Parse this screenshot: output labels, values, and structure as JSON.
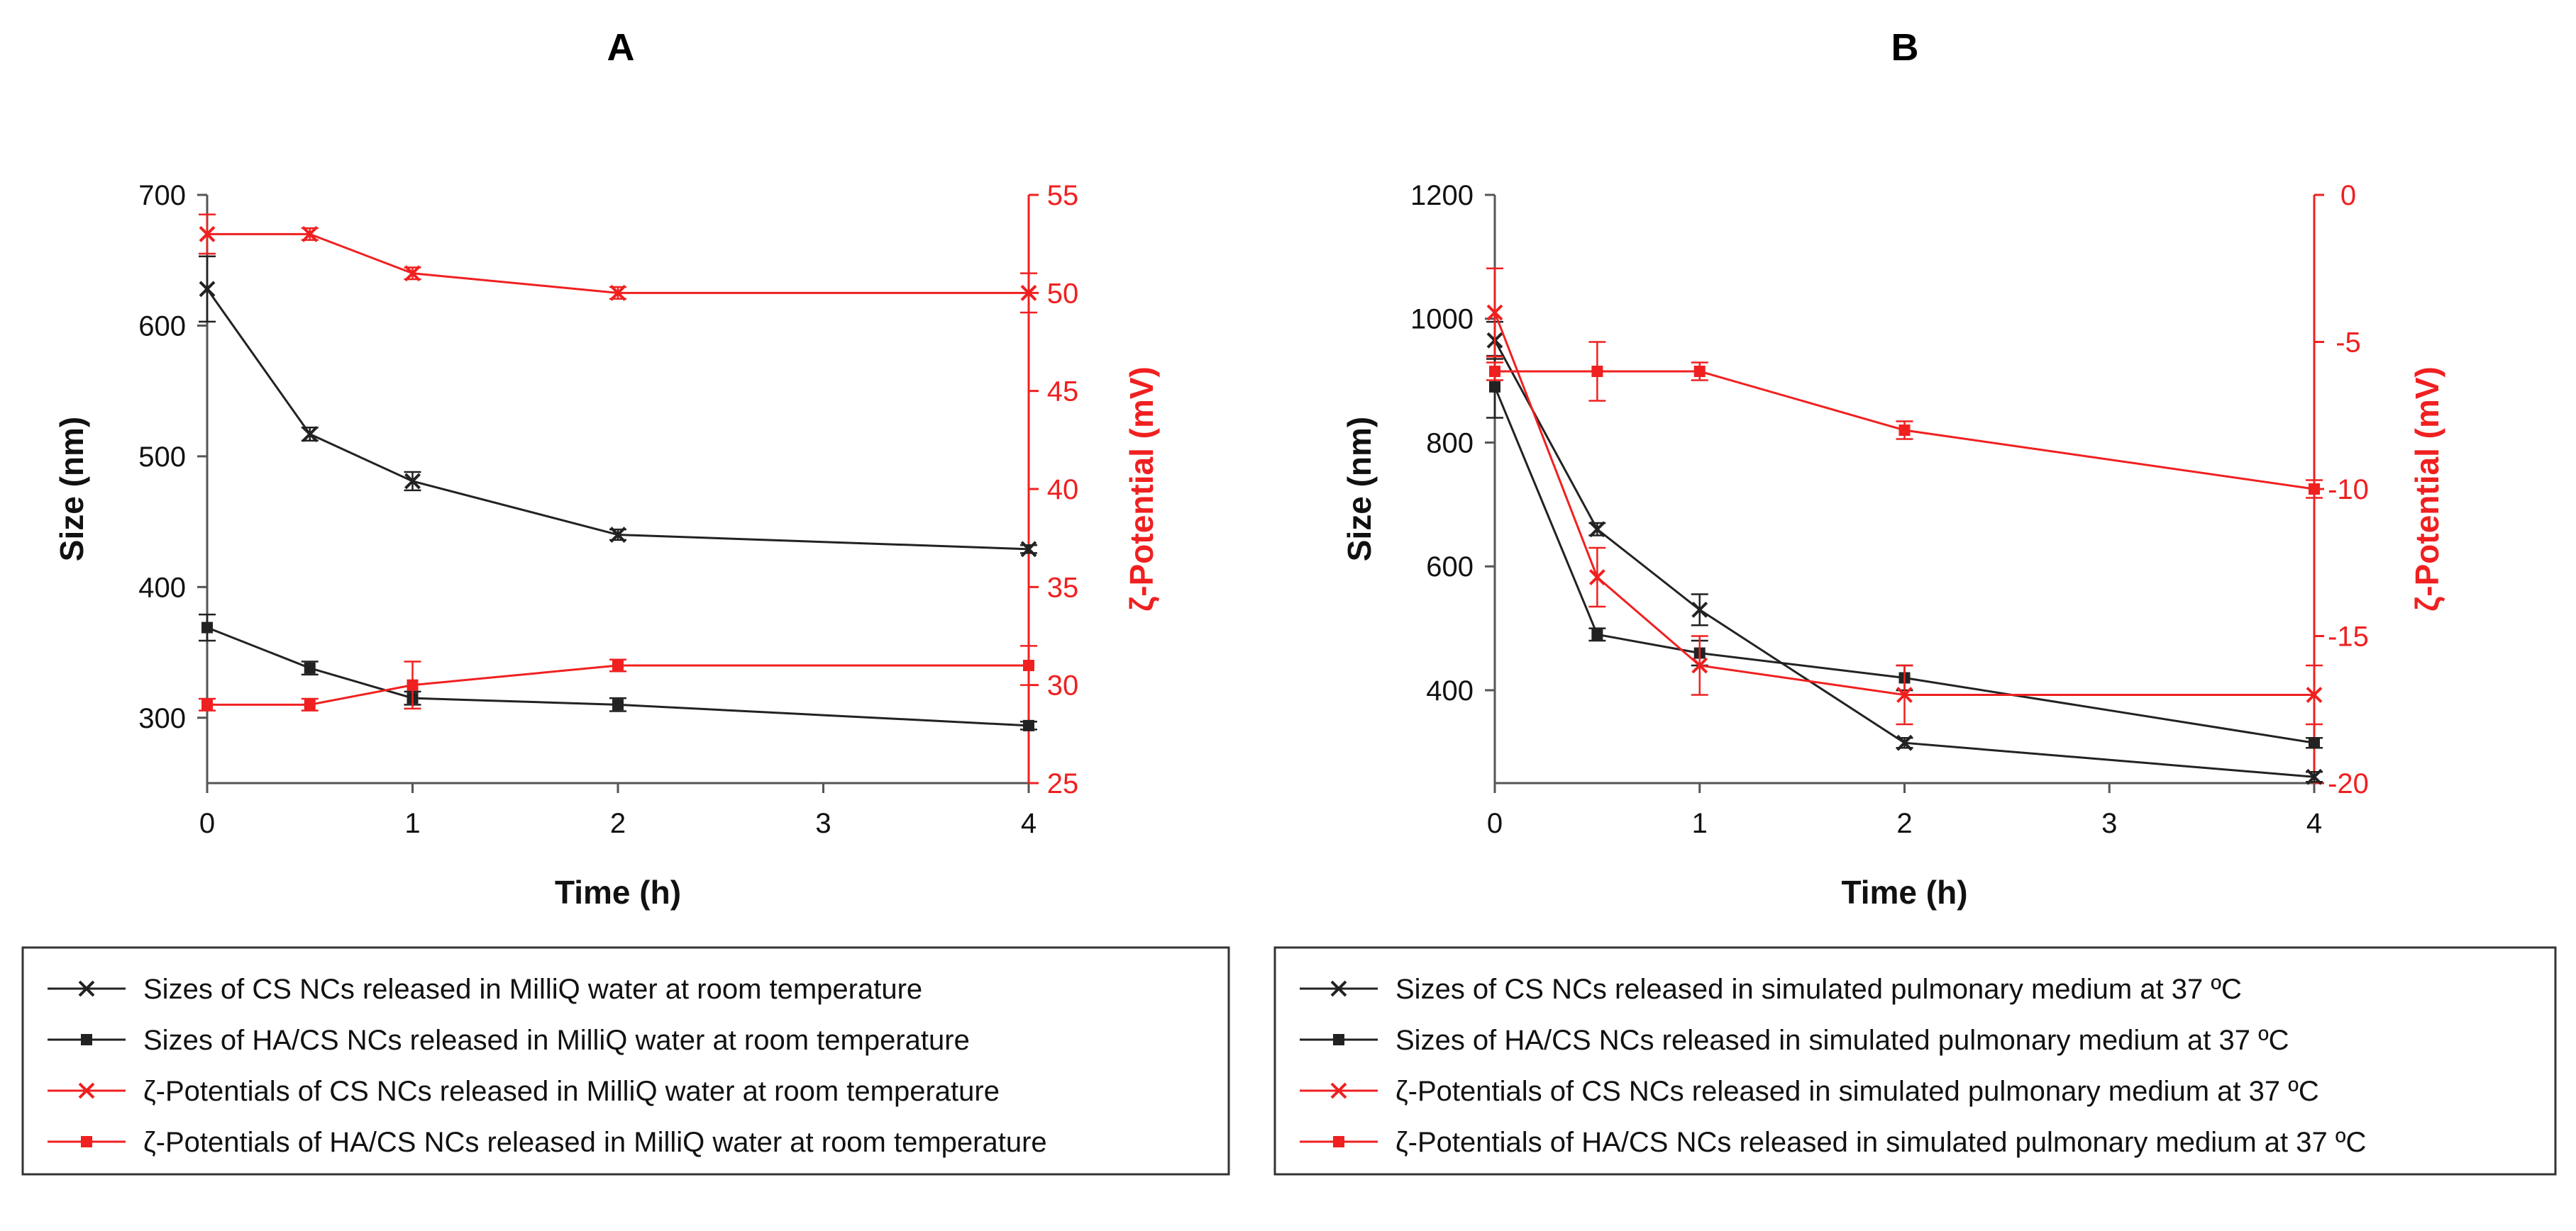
{
  "colors": {
    "black": "#222222",
    "red": "#f02020"
  },
  "chart_data": [
    {
      "panel": "A",
      "type": "line",
      "title": "A",
      "xlabel": "Time (h)",
      "ylabel_left": "Size (nm)",
      "ylabel_right": "ζ-Potential (mV)",
      "xlim": [
        0,
        4
      ],
      "xticks": [
        "0",
        "1",
        "2",
        "3",
        "4"
      ],
      "ylim_left": [
        250,
        700
      ],
      "yticks_left": [
        "300",
        "400",
        "500",
        "600",
        "700"
      ],
      "ylim_right": [
        25,
        55
      ],
      "yticks_right": [
        "25",
        "30",
        "35",
        "40",
        "45",
        "50",
        "55"
      ],
      "grid": false,
      "legend_position": "bottom",
      "series": [
        {
          "name": "Sizes of CS NCs released in MilliQ water at room temperature",
          "axis": "left",
          "color": "black",
          "marker": "x",
          "x": [
            0,
            0.5,
            1,
            2,
            4
          ],
          "values": [
            628,
            517,
            481,
            440,
            429
          ],
          "errors": [
            25,
            5,
            7,
            4,
            3
          ]
        },
        {
          "name": "Sizes of HA/CS NCs released in MilliQ water at room temperature",
          "axis": "left",
          "color": "black",
          "marker": "square",
          "x": [
            0,
            0.5,
            1,
            2,
            4
          ],
          "values": [
            369,
            338,
            315,
            310,
            294
          ],
          "errors": [
            10,
            5,
            5,
            5,
            3
          ]
        },
        {
          "name": "ζ-Potentials of CS NCs released in MilliQ water at room temperature",
          "axis": "right",
          "color": "red",
          "marker": "x",
          "x": [
            0,
            0.5,
            1,
            2,
            4
          ],
          "values": [
            53,
            53,
            51,
            50,
            50
          ],
          "errors": [
            1.0,
            0.3,
            0.3,
            0.3,
            1.0
          ]
        },
        {
          "name": "ζ-Potentials of HA/CS NCs released in MilliQ water at room temperature",
          "axis": "right",
          "color": "red",
          "marker": "square",
          "x": [
            0,
            0.5,
            1,
            2,
            4
          ],
          "values": [
            29,
            29,
            30,
            31,
            31
          ],
          "errors": [
            0.3,
            0.3,
            1.2,
            0.3,
            1.0
          ]
        }
      ]
    },
    {
      "panel": "B",
      "type": "line",
      "title": "B",
      "xlabel": "Time (h)",
      "ylabel_left": "Size (nm)",
      "ylabel_right": "ζ-Potential (mV)",
      "xlim": [
        0,
        4
      ],
      "xticks": [
        "0",
        "1",
        "2",
        "3",
        "4"
      ],
      "ylim_left": [
        250,
        1200
      ],
      "yticks_left": [
        "400",
        "600",
        "800",
        "1000",
        "1200"
      ],
      "ylim_right": [
        -20,
        0
      ],
      "yticks_right": [
        "0",
        "-5",
        "-10",
        "-15",
        "-20"
      ],
      "grid": false,
      "legend_position": "bottom",
      "series": [
        {
          "name": "Sizes of CS NCs released in simulated pulmonary medium at 37 ºC",
          "axis": "left",
          "color": "black",
          "marker": "x",
          "x": [
            0,
            0.5,
            1,
            2,
            4
          ],
          "values": [
            965,
            660,
            530,
            315,
            260
          ],
          "errors": [
            30,
            10,
            25,
            8,
            8
          ]
        },
        {
          "name": "Sizes of HA/CS NCs released in simulated pulmonary medium at 37 ºC",
          "axis": "left",
          "color": "black",
          "marker": "square",
          "x": [
            0,
            0.5,
            1,
            2,
            4
          ],
          "values": [
            890,
            490,
            460,
            420,
            315
          ],
          "errors": [
            50,
            10,
            20,
            20,
            8
          ]
        },
        {
          "name": "ζ-Potentials of CS NCs released in simulated pulmonary medium at 37 ºC",
          "axis": "right",
          "color": "red",
          "marker": "x",
          "x": [
            0,
            0.5,
            1,
            2,
            4
          ],
          "values": [
            -4,
            -13,
            -16,
            -17,
            -17
          ],
          "errors": [
            1.5,
            1.0,
            1.0,
            1.0,
            1.0
          ]
        },
        {
          "name": "ζ-Potentials of HA/CS NCs released in simulated pulmonary medium at 37 ºC",
          "axis": "right",
          "color": "red",
          "marker": "square",
          "x": [
            0,
            0.5,
            1,
            2,
            4
          ],
          "values": [
            -6,
            -6,
            -6,
            -8,
            -10
          ],
          "errors": [
            0.3,
            1.0,
            0.3,
            0.3,
            0.3
          ]
        }
      ]
    }
  ]
}
